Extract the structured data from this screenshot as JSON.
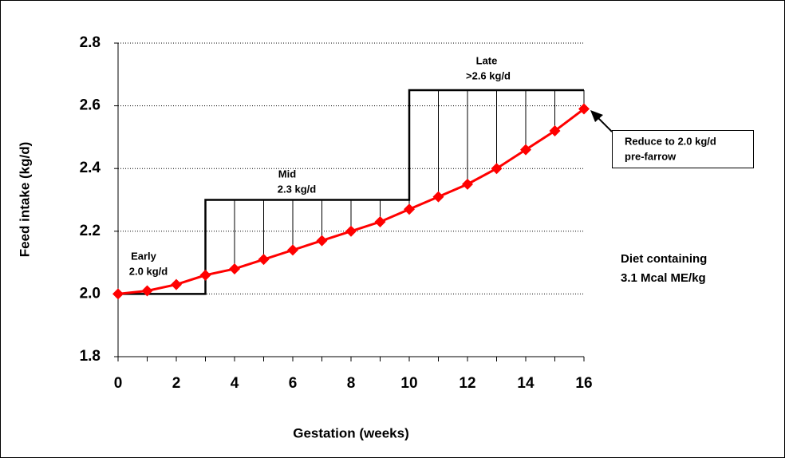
{
  "chart_data": {
    "type": "line",
    "x": [
      0,
      1,
      2,
      3,
      4,
      5,
      6,
      7,
      8,
      9,
      10,
      11,
      12,
      13,
      14,
      15,
      16
    ],
    "series": [
      {
        "color": "#ff0000",
        "values": [
          2.0,
          2.01,
          2.03,
          2.06,
          2.08,
          2.11,
          2.14,
          2.17,
          2.2,
          2.23,
          2.27,
          2.31,
          2.35,
          2.4,
          2.46,
          2.52,
          2.59
        ]
      }
    ],
    "step": {
      "color": "#000000",
      "x": [
        0,
        3,
        3,
        10,
        10,
        16
      ],
      "values": [
        2.0,
        2.0,
        2.3,
        2.3,
        2.65,
        2.65
      ]
    },
    "xlim": [
      0,
      16
    ],
    "xticks": [
      0,
      2,
      4,
      6,
      8,
      10,
      12,
      14,
      16
    ],
    "ylim": [
      1.8,
      2.8
    ],
    "yticks": [
      {
        "value": 1.8,
        "label": "1.8"
      },
      {
        "value": 2.0,
        "label": "2.0"
      },
      {
        "value": 2.2,
        "label": "2.2"
      },
      {
        "value": 2.4,
        "label": "2.4"
      },
      {
        "value": 2.6,
        "label": "2.6"
      },
      {
        "value": 2.8,
        "label": "2.8"
      }
    ],
    "grid": true,
    "x_label": "Gestation (weeks)",
    "y_label": "Feed intake (kg/d)",
    "annotations": {
      "early": [
        "Early",
        "2.0 kg/d"
      ],
      "mid": [
        "Mid",
        "2.3 kg/d"
      ],
      "late": [
        "Late",
        ">2.6 kg/d"
      ],
      "callout": [
        "Reduce to 2.0 kg/d",
        "pre-farrow"
      ],
      "diet": [
        "Diet containing",
        "3.1 Mcal ME/kg"
      ]
    }
  }
}
